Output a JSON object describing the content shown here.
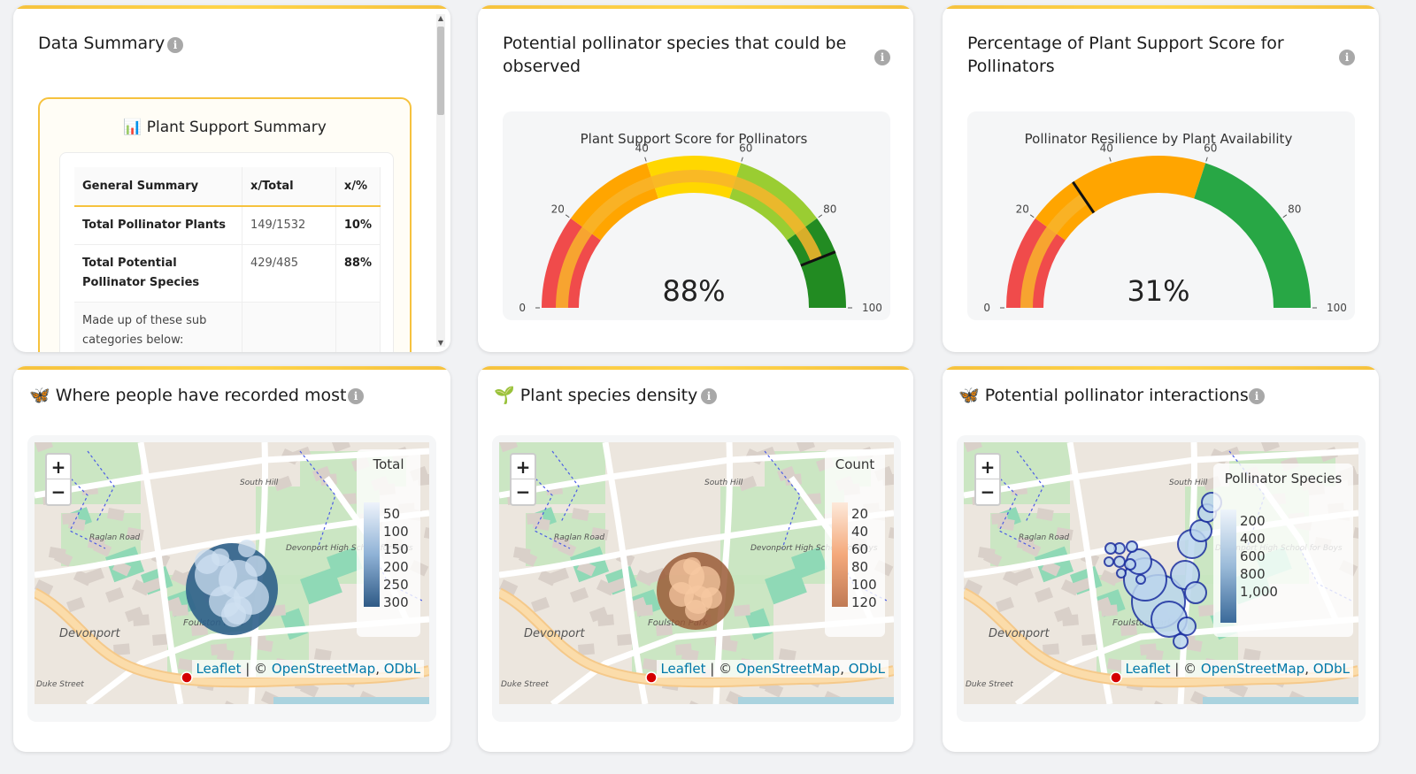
{
  "data_summary": {
    "title": "Data Summary",
    "box_title": "📊 Plant Support Summary",
    "headers": [
      "General Summary",
      "x/Total",
      "x/%"
    ],
    "rows": [
      {
        "label": "Total Pollinator Plants",
        "value": "149/1532",
        "pct": "10%"
      },
      {
        "label": "Total Potential Pollinator Species",
        "value": "429/485",
        "pct": "88%"
      }
    ],
    "footer_text": "Made up of these sub categories below:"
  },
  "gauge1": {
    "card_title": "Potential pollinator species that could be observed",
    "chart_title": "Plant Support Score for Pollinators",
    "value_text": "88%",
    "value": 88,
    "ticks": [
      "0",
      "20",
      "40",
      "60",
      "80",
      "100"
    ],
    "colors": {
      "red": "#f04b4b",
      "orange": "#ffa500",
      "gold": "#ffd700",
      "yellowgreen": "#9acd32",
      "green": "#228b22"
    }
  },
  "gauge2": {
    "card_title": "Percentage of Plant Support Score for Pollinators",
    "chart_title": "Pollinator Resilience by Plant Availability",
    "value_text": "31%",
    "value": 31,
    "ticks": [
      "0",
      "20",
      "40",
      "60",
      "80",
      "100"
    ],
    "colors": {
      "red": "#f04b4b",
      "orange": "#ffa500",
      "green": "#28a745"
    }
  },
  "chart_data": [
    {
      "type": "gauge",
      "title": "Plant Support Score for Pollinators",
      "value": 88,
      "range": [
        0,
        100
      ],
      "bands": [
        [
          0,
          20,
          "#f04b4b"
        ],
        [
          20,
          40,
          "#ffa500"
        ],
        [
          40,
          60,
          "#ffd700"
        ],
        [
          60,
          80,
          "#9acd32"
        ],
        [
          80,
          100,
          "#228b22"
        ]
      ]
    },
    {
      "type": "gauge",
      "title": "Pollinator Resilience by Plant Availability",
      "value": 31,
      "range": [
        0,
        100
      ],
      "bands": [
        [
          0,
          20,
          "#f04b4b"
        ],
        [
          20,
          60,
          "#ffa500"
        ],
        [
          60,
          100,
          "#28a745"
        ]
      ]
    }
  ],
  "map1": {
    "title": "Where people have recorded most",
    "icon": "🦋",
    "legend_title": "Total",
    "legend_ticks": [
      "50",
      "100",
      "150",
      "200",
      "250",
      "300"
    ],
    "attribution": {
      "leaflet": "Leaflet",
      "sep": " | © ",
      "osm": "OpenStreetMap",
      "comma": ", ",
      "odbl": "ODbL"
    }
  },
  "map2": {
    "title": "Plant species density",
    "icon": "🌱",
    "legend_title": "Count",
    "legend_ticks": [
      "20",
      "40",
      "60",
      "80",
      "100",
      "120"
    ],
    "attribution": {
      "leaflet": "Leaflet",
      "sep": " | © ",
      "osm": "OpenStreetMap",
      "comma": ", ",
      "odbl": "ODbL"
    }
  },
  "map3": {
    "title": "Potential pollinator interactions",
    "icon": "🦋",
    "legend_title": "Pollinator Species",
    "legend_ticks": [
      "200",
      "400",
      "600",
      "800",
      "1,000"
    ],
    "attribution": {
      "leaflet": "Leaflet",
      "sep": " | © ",
      "osm": "OpenStreetMap",
      "comma": ", ",
      "odbl": "ODbL"
    }
  },
  "map_labels": {
    "town": "Devonport",
    "park": "Foulston Park",
    "school": "Devonport High School for Boys",
    "road1": "Raglan Road",
    "road2": "Duke Street",
    "road3": "South Hill"
  },
  "zoom": {
    "in": "+",
    "out": "−"
  },
  "info": "i"
}
